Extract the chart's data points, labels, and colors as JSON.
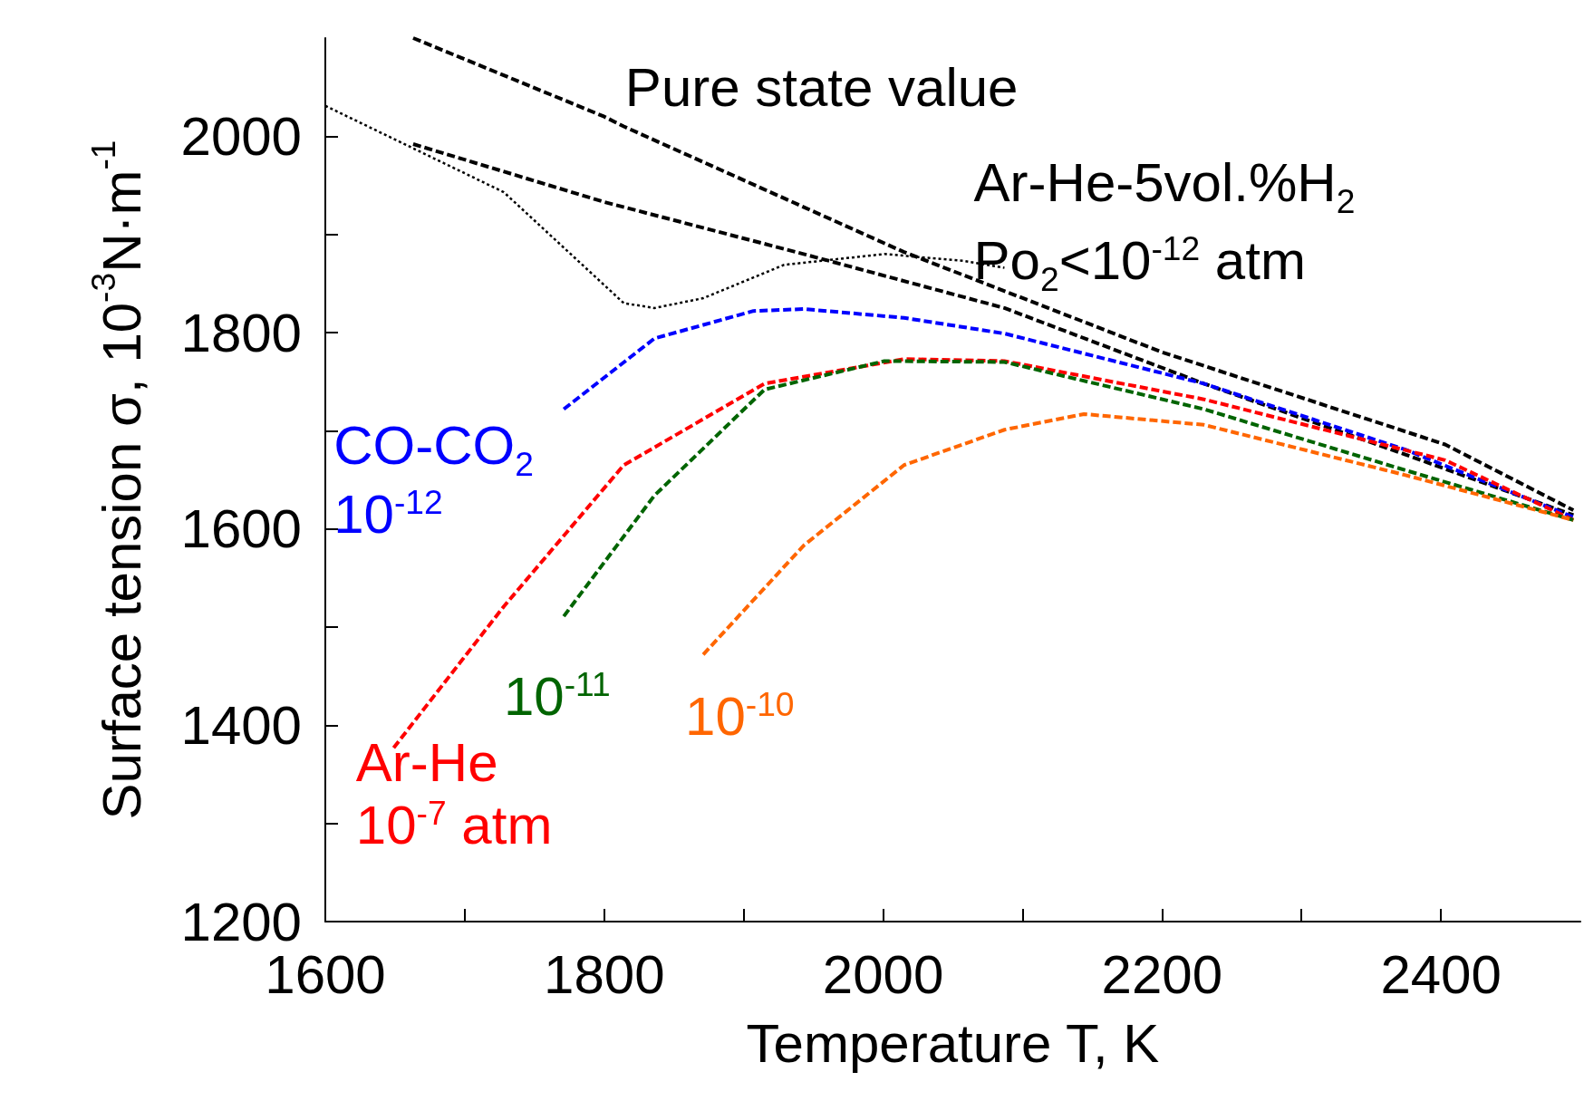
{
  "chart_data": {
    "type": "line",
    "xlabel": "Temperature T, K",
    "ylabel": "Surface tension σ, 10$^{-3}$N·m$^{-1}$",
    "xlim": [
      1600,
      2500
    ],
    "ylim": [
      1200,
      2100
    ],
    "xticks": [
      1600,
      {
        "value": 1700,
        "label": null
      },
      1800,
      {
        "value": 1900,
        "label": null
      },
      2000,
      {
        "value": 2100,
        "label": null
      },
      2200,
      {
        "value": 2300,
        "label": null
      },
      2400
    ],
    "yticks": [
      1200,
      {
        "value": 1300,
        "label": null
      },
      1400,
      {
        "value": 1500,
        "label": null
      },
      1600,
      {
        "value": 1700,
        "label": null
      },
      1800,
      {
        "value": 1900,
        "label": null
      },
      2000
    ],
    "annotations": [
      "Ar-He-5vol.%H$_{2}$",
      "Po$_{2}$<10$^{-12}$ atm"
    ],
    "series": [
      {
        "name": "Pure state value",
        "color": "#000000",
        "line_style": "dashed",
        "x": [
          1663,
          1800,
          1814,
          2015,
          2200,
          2403,
          2495
        ],
        "values": [
          2100,
          2020,
          2010,
          1882,
          1780,
          1686,
          1619
        ]
      },
      {
        "color": "#000000",
        "line_style": "dashed",
        "x": [
          1663,
          1800,
          1943,
          2087,
          2230,
          2374,
          2495
        ],
        "values": [
          1992,
          1933,
          1880,
          1825,
          1748,
          1676,
          1614
        ]
      },
      {
        "color": "#000000",
        "line_style": "dotted",
        "x": [
          1600,
          1728,
          1814,
          1836,
          1871,
          1929,
          2001,
          2058,
          2087
        ],
        "values": [
          2031,
          1943,
          1830,
          1825,
          1835,
          1869,
          1880,
          1873,
          1866
        ]
      },
      {
        "name": "CO-CO$_{2}$\n10$^{-12}$",
        "color": "#0000ff",
        "line_style": "dashed",
        "x": [
          1771,
          1836,
          1907,
          1943,
          2015,
          2087,
          2230,
          2374,
          2495
        ],
        "values": [
          1722,
          1794,
          1822,
          1824,
          1815,
          1799,
          1748,
          1681,
          1612
        ]
      },
      {
        "name": "Ar-He\n10$^{-7}$ atm",
        "color": "#ff0000",
        "line_style": "dashed",
        "x": [
          1649,
          1728,
          1814,
          1915,
          2015,
          2087,
          2230,
          2403,
          2495
        ],
        "values": [
          1377,
          1521,
          1665,
          1748,
          1773,
          1771,
          1732,
          1670,
          1609
        ]
      },
      {
        "name": "10$^{-11}$",
        "color": "#006400",
        "line_style": "dashed",
        "x": [
          1771,
          1836,
          1915,
          2001,
          2087,
          2230,
          2374,
          2495
        ],
        "values": [
          1511,
          1634,
          1742,
          1771,
          1770,
          1722,
          1660,
          1609
        ]
      },
      {
        "name": "10$^{-10}$",
        "color": "#ff6600",
        "line_style": "dashed",
        "x": [
          1871,
          1943,
          2015,
          2087,
          2144,
          2230,
          2374,
          2495
        ],
        "values": [
          1472,
          1583,
          1665,
          1701,
          1717,
          1706,
          1655,
          1609
        ]
      }
    ]
  }
}
